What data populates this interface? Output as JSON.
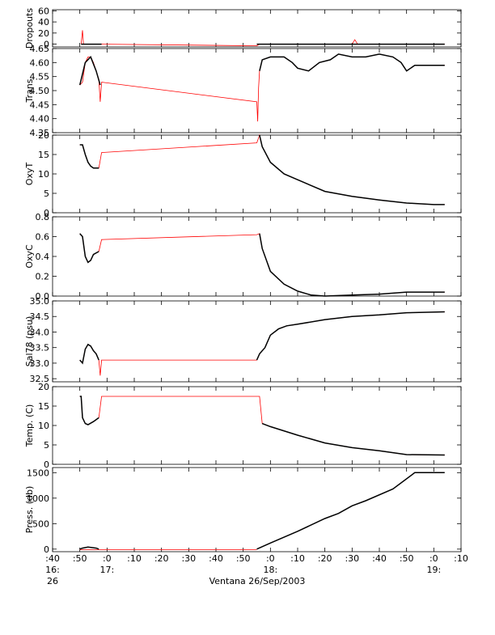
{
  "chart_data": {
    "type": "line",
    "xlabel": "Ventana 26/Sep/2003",
    "x_range": [
      "16:40",
      "19:10"
    ],
    "x_ticks": [
      {
        "time": "16:40",
        "label": ":40",
        "sub": [
          "16:",
          "26"
        ]
      },
      {
        "time": "16:50",
        "label": ":50",
        "sub": []
      },
      {
        "time": "17:00",
        "label": ":0",
        "sub": [
          "17:"
        ]
      },
      {
        "time": "17:10",
        "label": ":10",
        "sub": []
      },
      {
        "time": "17:20",
        "label": ":20",
        "sub": []
      },
      {
        "time": "17:30",
        "label": ":30",
        "sub": []
      },
      {
        "time": "17:40",
        "label": ":40",
        "sub": []
      },
      {
        "time": "17:50",
        "label": ":50",
        "sub": []
      },
      {
        "time": "18:00",
        "label": ":0",
        "sub": [
          "18:"
        ]
      },
      {
        "time": "18:10",
        "label": ":10",
        "sub": []
      },
      {
        "time": "18:20",
        "label": ":20",
        "sub": []
      },
      {
        "time": "18:30",
        "label": ":30",
        "sub": []
      },
      {
        "time": "18:40",
        "label": ":40",
        "sub": []
      },
      {
        "time": "18:50",
        "label": ":50",
        "sub": []
      },
      {
        "time": "19:00",
        "label": ":0",
        "sub": [
          "19:"
        ]
      },
      {
        "time": "19:10",
        "label": ":10",
        "sub": []
      }
    ],
    "colors": {
      "raw": "#ff0000",
      "processed": "#000000"
    },
    "panels": [
      {
        "id": "dropouts",
        "ylabel": "Dropouts",
        "ylim": [
          -5,
          62
        ],
        "yticks": [
          0,
          20,
          40,
          60
        ],
        "yticklabels": [
          "0",
          "20",
          "40",
          "60"
        ],
        "raw": [
          [
            "16:50:30",
            0
          ],
          [
            "16:51",
            25
          ],
          [
            "16:51:20",
            0
          ],
          [
            "16:58",
            0
          ],
          [
            "17:55",
            -3
          ],
          [
            "17:56",
            0
          ],
          [
            "18:30",
            0
          ],
          [
            "18:31",
            8
          ],
          [
            "18:32",
            0
          ],
          [
            "19:04",
            0
          ]
        ],
        "processed": [
          [
            "16:50:30",
            0
          ],
          [
            "16:58",
            0
          ]
        ],
        "processed2": [
          [
            "17:55",
            0
          ],
          [
            "19:04",
            0
          ]
        ]
      },
      {
        "id": "trans",
        "ylabel": "Trans",
        "ylim": [
          4.35,
          4.65
        ],
        "yticks": [
          4.35,
          4.4,
          4.45,
          4.5,
          4.55,
          4.6,
          4.65
        ],
        "yticklabels": [
          "4.35",
          "4.40",
          "4.45",
          "4.50",
          "4.55",
          "4.60",
          "4.65"
        ],
        "raw": [
          [
            "16:50",
            4.52
          ],
          [
            "16:51",
            4.53
          ],
          [
            "16:52",
            4.6
          ],
          [
            "16:53",
            4.62
          ],
          [
            "16:54",
            4.62
          ],
          [
            "16:55",
            4.6
          ],
          [
            "16:56",
            4.57
          ],
          [
            "16:57",
            4.54
          ],
          [
            "16:57:30",
            4.46
          ],
          [
            "16:58",
            4.53
          ],
          [
            "17:55",
            4.46
          ],
          [
            "17:55:20",
            4.39
          ],
          [
            "17:55:40",
            4.51
          ],
          [
            "17:56",
            4.57
          ],
          [
            "17:57",
            4.61
          ],
          [
            "18:00",
            4.62
          ],
          [
            "18:05",
            4.62
          ],
          [
            "18:08",
            4.6
          ],
          [
            "18:10",
            4.58
          ],
          [
            "18:14",
            4.57
          ],
          [
            "18:18",
            4.6
          ],
          [
            "18:22",
            4.61
          ],
          [
            "18:25",
            4.63
          ],
          [
            "18:30",
            4.62
          ],
          [
            "18:35",
            4.62
          ],
          [
            "18:40",
            4.63
          ],
          [
            "18:45",
            4.62
          ],
          [
            "18:48",
            4.6
          ],
          [
            "18:50",
            4.57
          ],
          [
            "18:53",
            4.59
          ],
          [
            "19:00",
            4.59
          ],
          [
            "19:04",
            4.59
          ]
        ],
        "processed": [
          [
            "16:50",
            4.52
          ],
          [
            "16:52",
            4.6
          ],
          [
            "16:54",
            4.62
          ],
          [
            "16:56",
            4.57
          ],
          [
            "16:57:30",
            4.52
          ]
        ],
        "processed2": [
          [
            "17:56",
            4.57
          ],
          [
            "17:57",
            4.61
          ],
          [
            "18:00",
            4.62
          ],
          [
            "18:05",
            4.62
          ],
          [
            "18:08",
            4.6
          ],
          [
            "18:10",
            4.58
          ],
          [
            "18:14",
            4.57
          ],
          [
            "18:18",
            4.6
          ],
          [
            "18:22",
            4.61
          ],
          [
            "18:25",
            4.63
          ],
          [
            "18:30",
            4.62
          ],
          [
            "18:35",
            4.62
          ],
          [
            "18:40",
            4.63
          ],
          [
            "18:45",
            4.62
          ],
          [
            "18:48",
            4.6
          ],
          [
            "18:50",
            4.57
          ],
          [
            "18:53",
            4.59
          ],
          [
            "19:00",
            4.59
          ],
          [
            "19:04",
            4.59
          ]
        ]
      },
      {
        "id": "oxyt",
        "ylabel": "OxyT",
        "ylim": [
          0,
          20
        ],
        "yticks": [
          0,
          5,
          10,
          15,
          20
        ],
        "yticklabels": [
          "0",
          "5",
          "10",
          "15",
          "20"
        ],
        "raw": [
          [
            "16:50",
            17.5
          ],
          [
            "16:51",
            17.5
          ],
          [
            "16:52",
            15
          ],
          [
            "16:53",
            13
          ],
          [
            "16:54",
            12
          ],
          [
            "16:55",
            11.5
          ],
          [
            "16:57",
            11.5
          ],
          [
            "16:58",
            15.5
          ],
          [
            "17:55",
            18
          ],
          [
            "17:56",
            20
          ],
          [
            "17:57",
            17
          ],
          [
            "18:00",
            13
          ],
          [
            "18:05",
            10
          ],
          [
            "18:10",
            8.5
          ],
          [
            "18:20",
            5.5
          ],
          [
            "18:30",
            4.2
          ],
          [
            "18:40",
            3.3
          ],
          [
            "18:50",
            2.5
          ],
          [
            "19:00",
            2.1
          ],
          [
            "19:04",
            2.1
          ]
        ],
        "processed": [
          [
            "16:50",
            17.5
          ],
          [
            "16:51",
            17.5
          ],
          [
            "16:52",
            15
          ],
          [
            "16:53",
            13
          ],
          [
            "16:54",
            12
          ],
          [
            "16:55",
            11.5
          ],
          [
            "16:57",
            11.5
          ]
        ],
        "processed2": [
          [
            "17:56",
            20
          ],
          [
            "17:57",
            17
          ],
          [
            "18:00",
            13
          ],
          [
            "18:05",
            10
          ],
          [
            "18:10",
            8.5
          ],
          [
            "18:20",
            5.5
          ],
          [
            "18:30",
            4.2
          ],
          [
            "18:40",
            3.3
          ],
          [
            "18:50",
            2.5
          ],
          [
            "19:00",
            2.1
          ],
          [
            "19:04",
            2.1
          ]
        ]
      },
      {
        "id": "oxyc",
        "ylabel": "OxyC",
        "ylim": [
          0,
          0.8
        ],
        "yticks": [
          0,
          0.2,
          0.4,
          0.6,
          0.8
        ],
        "yticklabels": [
          "0.0",
          "0.2",
          "0.4",
          "0.6",
          "0.8"
        ],
        "raw": [
          [
            "16:50",
            0.63
          ],
          [
            "16:51",
            0.6
          ],
          [
            "16:52",
            0.4
          ],
          [
            "16:53",
            0.34
          ],
          [
            "16:54",
            0.36
          ],
          [
            "16:55",
            0.42
          ],
          [
            "16:57",
            0.45
          ],
          [
            "16:58",
            0.57
          ],
          [
            "17:55",
            0.62
          ],
          [
            "17:56",
            0.63
          ],
          [
            "17:57",
            0.48
          ],
          [
            "18:00",
            0.25
          ],
          [
            "18:05",
            0.12
          ],
          [
            "18:10",
            0.05
          ],
          [
            "18:15",
            0.01
          ],
          [
            "18:20",
            0.0
          ],
          [
            "18:30",
            0.01
          ],
          [
            "18:40",
            0.02
          ],
          [
            "18:50",
            0.04
          ],
          [
            "19:04",
            0.04
          ]
        ],
        "processed": [
          [
            "16:50",
            0.63
          ],
          [
            "16:51",
            0.6
          ],
          [
            "16:52",
            0.4
          ],
          [
            "16:53",
            0.34
          ],
          [
            "16:54",
            0.36
          ],
          [
            "16:55",
            0.42
          ],
          [
            "16:57",
            0.45
          ]
        ],
        "processed2": [
          [
            "17:56",
            0.63
          ],
          [
            "17:57",
            0.48
          ],
          [
            "18:00",
            0.25
          ],
          [
            "18:05",
            0.12
          ],
          [
            "18:10",
            0.05
          ],
          [
            "18:15",
            0.01
          ],
          [
            "18:20",
            0.0
          ],
          [
            "18:30",
            0.01
          ],
          [
            "18:40",
            0.02
          ],
          [
            "18:50",
            0.04
          ],
          [
            "19:04",
            0.04
          ]
        ]
      },
      {
        "id": "sal",
        "ylabel": "Sal78 (psu)",
        "ylim": [
          32.4,
          35.0
        ],
        "yticks": [
          32.5,
          33.0,
          33.5,
          34.0,
          34.5,
          35.0
        ],
        "yticklabels": [
          "32.5",
          "33.0",
          "33.5",
          "34.0",
          "34.5",
          "35.0"
        ],
        "raw": [
          [
            "16:50",
            33.1
          ],
          [
            "16:51",
            33.0
          ],
          [
            "16:52",
            33.45
          ],
          [
            "16:53",
            33.6
          ],
          [
            "16:54",
            33.55
          ],
          [
            "16:55",
            33.4
          ],
          [
            "16:56",
            33.3
          ],
          [
            "16:57",
            33.1
          ],
          [
            "16:57:30",
            32.6
          ],
          [
            "16:58",
            33.1
          ],
          [
            "17:55",
            33.1
          ],
          [
            "17:56",
            33.3
          ],
          [
            "17:58",
            33.5
          ],
          [
            "18:00",
            33.9
          ],
          [
            "18:03",
            34.1
          ],
          [
            "18:06",
            34.2
          ],
          [
            "18:10",
            34.25
          ],
          [
            "18:20",
            34.4
          ],
          [
            "18:30",
            34.5
          ],
          [
            "18:40",
            34.55
          ],
          [
            "18:50",
            34.62
          ],
          [
            "19:04",
            34.65
          ]
        ],
        "processed": [
          [
            "16:50",
            33.1
          ],
          [
            "16:51",
            33.0
          ],
          [
            "16:52",
            33.45
          ],
          [
            "16:53",
            33.6
          ],
          [
            "16:54",
            33.55
          ],
          [
            "16:55",
            33.4
          ],
          [
            "16:56",
            33.3
          ],
          [
            "16:57",
            33.1
          ]
        ],
        "processed2": [
          [
            "17:55",
            33.1
          ],
          [
            "17:56",
            33.3
          ],
          [
            "17:58",
            33.5
          ],
          [
            "18:00",
            33.9
          ],
          [
            "18:03",
            34.1
          ],
          [
            "18:06",
            34.2
          ],
          [
            "18:10",
            34.25
          ],
          [
            "18:20",
            34.4
          ],
          [
            "18:30",
            34.5
          ],
          [
            "18:40",
            34.55
          ],
          [
            "18:50",
            34.62
          ],
          [
            "19:04",
            34.65
          ]
        ]
      },
      {
        "id": "temp",
        "ylabel": "Temp. (C)",
        "ylim": [
          0,
          20
        ],
        "yticks": [
          0,
          5,
          10,
          15,
          20
        ],
        "yticklabels": [
          "0",
          "5",
          "10",
          "15",
          "20"
        ],
        "raw": [
          [
            "16:50",
            17.5
          ],
          [
            "16:50:30",
            17.5
          ],
          [
            "16:51",
            12
          ],
          [
            "16:52",
            10.5
          ],
          [
            "16:53",
            10.2
          ],
          [
            "16:55",
            11
          ],
          [
            "16:57",
            12
          ],
          [
            "16:58",
            17.5
          ],
          [
            "17:56",
            17.5
          ],
          [
            "17:57",
            10.5
          ],
          [
            "18:00",
            9.7
          ],
          [
            "18:10",
            7.5
          ],
          [
            "18:20",
            5.5
          ],
          [
            "18:30",
            4.3
          ],
          [
            "18:40",
            3.5
          ],
          [
            "18:50",
            2.5
          ],
          [
            "19:04",
            2.4
          ]
        ],
        "processed": [
          [
            "16:50",
            17.5
          ],
          [
            "16:50:30",
            17.5
          ],
          [
            "16:51",
            12
          ],
          [
            "16:52",
            10.5
          ],
          [
            "16:53",
            10.2
          ],
          [
            "16:55",
            11
          ],
          [
            "16:57",
            12
          ]
        ],
        "processed2": [
          [
            "17:57",
            10.5
          ],
          [
            "18:00",
            9.7
          ],
          [
            "18:10",
            7.5
          ],
          [
            "18:20",
            5.5
          ],
          [
            "18:30",
            4.3
          ],
          [
            "18:40",
            3.5
          ],
          [
            "18:50",
            2.5
          ],
          [
            "19:04",
            2.4
          ]
        ]
      },
      {
        "id": "press",
        "ylabel": "Press. (db)",
        "ylim": [
          -50,
          1600
        ],
        "yticks": [
          0,
          500,
          1000,
          1500
        ],
        "yticklabels": [
          "0",
          "500",
          "1000",
          "1500"
        ],
        "raw": [
          [
            "16:50",
            -10
          ],
          [
            "16:58",
            -10
          ],
          [
            "17:55",
            -10
          ]
        ],
        "processed": [
          [
            "16:50",
            0
          ],
          [
            "16:51",
            20
          ],
          [
            "16:53",
            40
          ],
          [
            "16:56",
            20
          ],
          [
            "16:57",
            0
          ]
        ],
        "processed2": [
          [
            "17:55",
            0
          ],
          [
            "18:00",
            120
          ],
          [
            "18:10",
            350
          ],
          [
            "18:20",
            600
          ],
          [
            "18:25",
            700
          ],
          [
            "18:30",
            850
          ],
          [
            "18:35",
            950
          ],
          [
            "18:45",
            1180
          ],
          [
            "18:53",
            1500
          ],
          [
            "19:04",
            1500
          ]
        ]
      }
    ]
  }
}
